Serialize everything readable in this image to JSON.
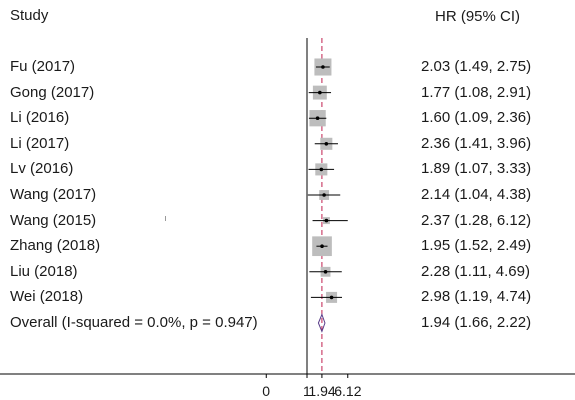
{
  "chart_data": {
    "type": "forest",
    "header": {
      "study": "Study",
      "effect": "HR (95% CI)"
    },
    "studies": [
      {
        "label": "Fu (2017)",
        "hr": 2.03,
        "lo": 1.49,
        "hi": 2.75,
        "ci_text": "2.03 (1.49, 2.75)",
        "weight": 0.6
      },
      {
        "label": "Gong (2017)",
        "hr": 1.77,
        "lo": 1.08,
        "hi": 2.91,
        "ci_text": "1.77 (1.08, 2.91)",
        "weight": 0.4
      },
      {
        "label": "Li (2016)",
        "hr": 1.6,
        "lo": 1.09,
        "hi": 2.36,
        "ci_text": "1.60 (1.09, 2.36)",
        "weight": 0.55
      },
      {
        "label": "Li (2017)",
        "hr": 2.36,
        "lo": 1.41,
        "hi": 3.96,
        "ci_text": "2.36 (1.41, 3.96)",
        "weight": 0.3
      },
      {
        "label": "Lv (2016)",
        "hr": 1.89,
        "lo": 1.07,
        "hi": 3.33,
        "ci_text": "1.89 (1.07, 3.33)",
        "weight": 0.3
      },
      {
        "label": "Wang (2017)",
        "hr": 2.14,
        "lo": 1.04,
        "hi": 4.38,
        "ci_text": "2.14 (1.04, 4.38)",
        "weight": 0.2
      },
      {
        "label": "Wang (2015)",
        "hr": 2.37,
        "lo": 1.28,
        "hi": 6.12,
        "ci_text": "2.37 (1.28, 6.12)",
        "weight": 0.1
      },
      {
        "label": "Zhang (2018)",
        "hr": 1.95,
        "lo": 1.52,
        "hi": 2.49,
        "ci_text": "1.95 (1.52, 2.49)",
        "weight": 0.8
      },
      {
        "label": "Liu (2018)",
        "hr": 2.28,
        "lo": 1.11,
        "hi": 4.69,
        "ci_text": "2.28 (1.11, 4.69)",
        "weight": 0.2
      },
      {
        "label": "Wei (2018)",
        "hr": 2.98,
        "lo": 1.19,
        "hi": 4.74,
        "ci_text": "2.98 (1.19, 4.74)",
        "weight": 0.25
      }
    ],
    "overall": {
      "label": "Overall  (I-squared = 0.0%, p = 0.947)",
      "hr": 1.94,
      "lo": 1.66,
      "hi": 2.22,
      "ci_text": "1.94 (1.66, 2.22)"
    },
    "x_axis": {
      "scale": "log",
      "ticks": [
        {
          "value": 0.1636,
          "label": "0"
        },
        {
          "value": 1,
          "label": "1"
        },
        {
          "value": 1.94,
          "label": "1.94"
        },
        {
          "value": 6.12,
          "label": "6.12"
        }
      ]
    },
    "reference_line": 1,
    "colors": {
      "box": "#bdbdbd",
      "point": "#000000",
      "ci_line": "#000000",
      "null_line": "#000000",
      "overall_line": "#c0204f",
      "diamond": "#5a3d8a",
      "axis": "#000000"
    }
  }
}
